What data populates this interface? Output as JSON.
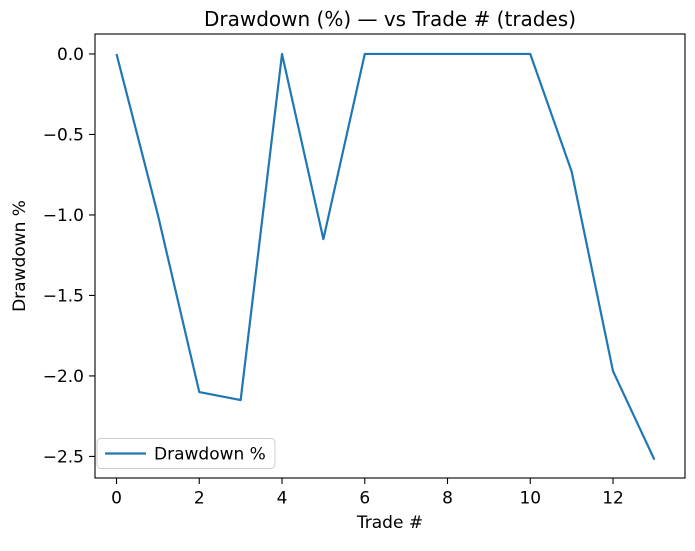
{
  "figure": {
    "background": "#ffffff",
    "text_color": "#000000"
  },
  "chart_data": {
    "type": "line",
    "title": "Drawdown (%) — vs Trade # (trades)",
    "xlabel": "Trade #",
    "ylabel": "Drawdown %",
    "legend": [
      "Drawdown %"
    ],
    "legend_position": "lower left",
    "line_color": "#1f77b4",
    "grid": false,
    "x": [
      0,
      1,
      2,
      3,
      4,
      5,
      6,
      7,
      8,
      9,
      10,
      11,
      12,
      13
    ],
    "y": [
      0.0,
      -1.0,
      -2.1,
      -2.15,
      0.0,
      -1.15,
      0.0,
      0.0,
      0.0,
      0.0,
      0.0,
      -0.73,
      -1.97,
      -2.52
    ],
    "xticks": {
      "values": [
        0,
        2,
        4,
        6,
        8,
        10,
        12
      ],
      "labels": [
        "0",
        "2",
        "4",
        "6",
        "8",
        "10",
        "12"
      ]
    },
    "yticks": {
      "values": [
        0.0,
        -0.5,
        -1.0,
        -1.5,
        -2.0,
        -2.5
      ],
      "labels": [
        "0.0",
        "−0.5",
        "−1.0",
        "−1.5",
        "−2.0",
        "−2.5"
      ]
    },
    "xlim": [
      -0.52,
      13.74
    ],
    "ylim": [
      -2.634,
      0.124
    ]
  }
}
